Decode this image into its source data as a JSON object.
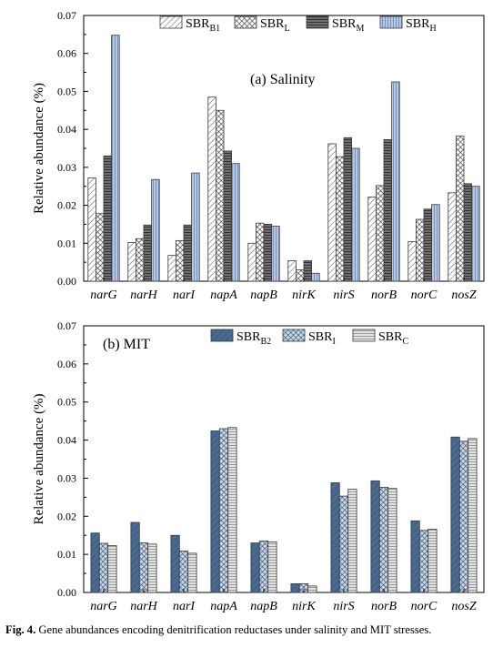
{
  "chart_data": [
    {
      "type": "bar",
      "title": "(a) Salinity",
      "ylabel": "Relative abundance (%)",
      "xlabel": "",
      "ylim": [
        0,
        0.07
      ],
      "yticks": [
        "0.00",
        "0.01",
        "0.02",
        "0.03",
        "0.04",
        "0.05",
        "0.06",
        "0.07"
      ],
      "legend_position": "top-right",
      "categories": [
        "narG",
        "narH",
        "narI",
        "napA",
        "napB",
        "nirK",
        "nirS",
        "norB",
        "norC",
        "nosZ"
      ],
      "series": [
        {
          "name": "SBR",
          "sub": "B1",
          "pattern": "hatch",
          "values": [
            0.0272,
            0.0102,
            0.0068,
            0.0485,
            0.01,
            0.0054,
            0.0362,
            0.0222,
            0.0104,
            0.0233
          ]
        },
        {
          "name": "SBR",
          "sub": "L",
          "pattern": "crosshatch",
          "values": [
            0.0178,
            0.0112,
            0.0107,
            0.045,
            0.0153,
            0.003,
            0.0328,
            0.0252,
            0.0163,
            0.0382
          ]
        },
        {
          "name": "SBR",
          "sub": "M",
          "pattern": "horizontal",
          "values": [
            0.033,
            0.0148,
            0.0148,
            0.0343,
            0.015,
            0.0054,
            0.0378,
            0.0373,
            0.019,
            0.0257
          ]
        },
        {
          "name": "SBR",
          "sub": "H",
          "pattern": "vertical",
          "values": [
            0.0648,
            0.0268,
            0.0285,
            0.031,
            0.0145,
            0.0021,
            0.035,
            0.0525,
            0.0202,
            0.025
          ]
        }
      ]
    },
    {
      "type": "bar",
      "title": "(b) MIT",
      "ylabel": "Relative abundance (%)",
      "xlabel": "",
      "ylim": [
        0,
        0.07
      ],
      "yticks": [
        "0.00",
        "0.01",
        "0.02",
        "0.03",
        "0.04",
        "0.05",
        "0.06",
        "0.07"
      ],
      "legend_position": "top-right",
      "categories": [
        "narG",
        "narH",
        "narI",
        "napA",
        "napB",
        "nirK",
        "nirS",
        "norB",
        "norC",
        "nosZ"
      ],
      "series": [
        {
          "name": "SBR",
          "sub": "B2",
          "pattern": "solid-blue",
          "values": [
            0.0156,
            0.0184,
            0.015,
            0.0424,
            0.013,
            0.0023,
            0.0288,
            0.0293,
            0.0188,
            0.0408
          ]
        },
        {
          "name": "SBR",
          "sub": "I",
          "pattern": "crosshatch-blue",
          "values": [
            0.0129,
            0.013,
            0.0109,
            0.043,
            0.0135,
            0.0023,
            0.0253,
            0.0276,
            0.0163,
            0.0397
          ]
        },
        {
          "name": "SBR",
          "sub": "C",
          "pattern": "lines-gray",
          "values": [
            0.0123,
            0.0127,
            0.0103,
            0.0433,
            0.0133,
            0.0017,
            0.0271,
            0.0273,
            0.0166,
            0.0404
          ]
        }
      ]
    }
  ],
  "caption": {
    "label": "Fig. 4.",
    "text": "Gene abundances encoding denitrification reductases under salinity and MIT stresses."
  },
  "colors": {
    "axis": "#000000",
    "bar_outline": "#3a3a3a",
    "dark_gray_fill": "#6f6f6f",
    "light_blue_fill": "#b4c7e7",
    "steel_blue_fill": "#4a6a8f",
    "light_gray_fill": "#d0d0d0"
  }
}
